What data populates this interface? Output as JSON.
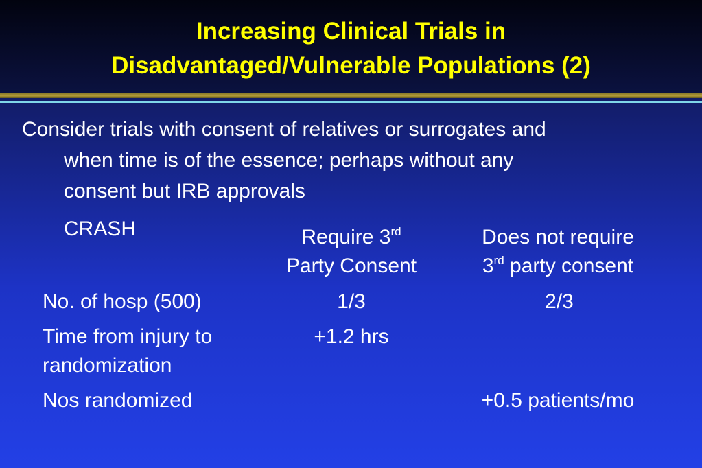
{
  "title": {
    "line1": "Increasing Clinical Trials in",
    "line2": "Disadvantaged/Vulnerable Populations (2)"
  },
  "bullet": {
    "line1": "Consider trials with consent of relatives or surrogates and",
    "line2": "when time is of the essence; perhaps without any",
    "line3": "consent but IRB approvals"
  },
  "table": {
    "label": "CRASH",
    "col1_header": {
      "line1_pre": "Require 3",
      "line1_sup": "rd",
      "line2": "Party Consent"
    },
    "col2_header": {
      "line1": "Does not require",
      "line2_pre": "3",
      "line2_sup": "rd",
      "line2_post": " party consent"
    },
    "rows": [
      {
        "label": "No. of hosp (500)",
        "col1": "1/3",
        "col2": "2/3"
      },
      {
        "label_line1": "Time from injury to",
        "label_line2": "randomization",
        "col1": "+1.2 hrs",
        "col2": ""
      },
      {
        "label": "Nos randomized",
        "col1": "",
        "col2": "+0.5 patients/mo"
      }
    ]
  },
  "colors": {
    "title": "#ffff00",
    "text": "#ffffff",
    "background_top": "#0a0f3a",
    "background_bottom": "#2340e6",
    "rule_gold": "#b39b38",
    "rule_cyan": "#7fd6e8"
  }
}
